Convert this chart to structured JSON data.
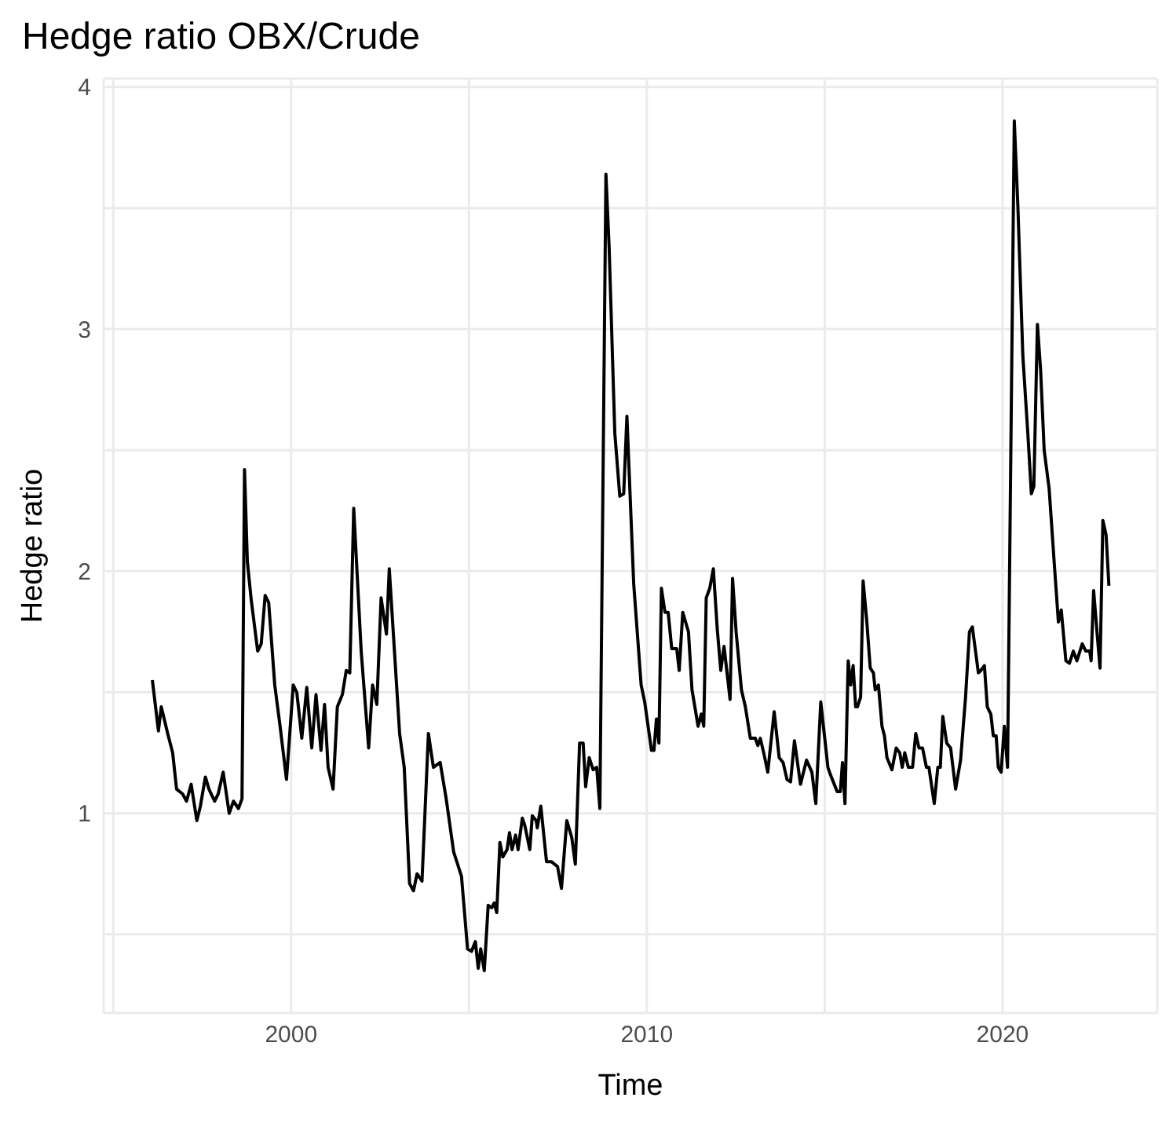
{
  "chart_data": {
    "type": "line",
    "title": "Hedge ratio OBX/Crude",
    "xlabel": "Time",
    "ylabel": "Hedge ratio",
    "xlim": [
      1994.73,
      2024.35
    ],
    "xticks": [
      {
        "value": 1995,
        "label": null
      },
      2000,
      {
        "value": 2005,
        "label": null
      },
      2010,
      {
        "value": 2015,
        "label": null
      },
      2020
    ],
    "ylim": [
      0.175,
      4.035
    ],
    "yticks": [
      {
        "value": 0.5,
        "label": null
      },
      1,
      {
        "value": 1.5,
        "label": null
      },
      2,
      {
        "value": 2.5,
        "label": null
      },
      3,
      {
        "value": 3.5,
        "label": null
      },
      4
    ],
    "grid": true,
    "marker": "none",
    "line_style": "solid",
    "series": [
      {
        "color": "#000000",
        "x": [
          1996.1,
          1996.27,
          1996.35,
          1996.53,
          1996.67,
          1996.78,
          1996.95,
          1997.06,
          1997.19,
          1997.35,
          1997.45,
          1997.59,
          1997.69,
          1997.85,
          1997.95,
          1998.09,
          1998.26,
          1998.38,
          1998.52,
          1998.62,
          1998.69,
          1998.77,
          1998.88,
          1999.06,
          1999.16,
          1999.27,
          1999.37,
          1999.54,
          1999.69,
          1999.87,
          2000.06,
          2000.16,
          2000.3,
          2000.44,
          2000.58,
          2000.7,
          2000.84,
          2000.94,
          2001.04,
          2001.18,
          2001.3,
          2001.44,
          2001.55,
          2001.65,
          2001.76,
          2001.97,
          2002.18,
          2002.29,
          2002.41,
          2002.53,
          2002.68,
          2002.76,
          2003.05,
          2003.18,
          2003.33,
          2003.44,
          2003.54,
          2003.68,
          2003.86,
          2004.0,
          2004.19,
          2004.36,
          2004.57,
          2004.79,
          2004.96,
          2005.07,
          2005.18,
          2005.26,
          2005.33,
          2005.43,
          2005.54,
          2005.64,
          2005.71,
          2005.78,
          2005.87,
          2005.95,
          2006.07,
          2006.14,
          2006.21,
          2006.31,
          2006.38,
          2006.5,
          2006.57,
          2006.71,
          2006.78,
          2006.89,
          2006.92,
          2007.02,
          2007.18,
          2007.32,
          2007.49,
          2007.6,
          2007.75,
          2007.89,
          2007.99,
          2008.11,
          2008.21,
          2008.28,
          2008.38,
          2008.49,
          2008.59,
          2008.68,
          2008.85,
          2008.94,
          2009.1,
          2009.24,
          2009.35,
          2009.44,
          2009.63,
          2009.84,
          2009.94,
          2010.13,
          2010.2,
          2010.27,
          2010.34,
          2010.41,
          2010.51,
          2010.6,
          2010.7,
          2010.84,
          2010.91,
          2011.01,
          2011.17,
          2011.27,
          2011.44,
          2011.53,
          2011.6,
          2011.67,
          2011.77,
          2011.87,
          2011.98,
          2012.08,
          2012.17,
          2012.34,
          2012.41,
          2012.51,
          2012.66,
          2012.77,
          2012.91,
          2013.05,
          2013.12,
          2013.19,
          2013.3,
          2013.4,
          2013.58,
          2013.72,
          2013.83,
          2013.94,
          2014.04,
          2014.15,
          2014.32,
          2014.49,
          2014.64,
          2014.75,
          2014.89,
          2015.09,
          2015.16,
          2015.35,
          2015.44,
          2015.5,
          2015.57,
          2015.66,
          2015.73,
          2015.8,
          2015.87,
          2015.92,
          2016.01,
          2016.08,
          2016.18,
          2016.28,
          2016.37,
          2016.42,
          2016.51,
          2016.61,
          2016.68,
          2016.75,
          2016.89,
          2017.01,
          2017.11,
          2017.18,
          2017.25,
          2017.35,
          2017.47,
          2017.56,
          2017.65,
          2017.75,
          2017.86,
          2017.93,
          2018.08,
          2018.18,
          2018.25,
          2018.32,
          2018.43,
          2018.54,
          2018.68,
          2018.82,
          2018.96,
          2019.07,
          2019.15,
          2019.32,
          2019.39,
          2019.49,
          2019.57,
          2019.67,
          2019.74,
          2019.82,
          2019.88,
          2019.96,
          2020.05,
          2020.14,
          2020.33,
          2020.43,
          2020.57,
          2020.71,
          2020.81,
          2020.88,
          2020.98,
          2021.07,
          2021.17,
          2021.31,
          2021.45,
          2021.57,
          2021.65,
          2021.78,
          2021.88,
          2021.99,
          2022.09,
          2022.24,
          2022.34,
          2022.45,
          2022.49,
          2022.56,
          2022.66,
          2022.74,
          2022.82,
          2022.91,
          2022.99
        ],
        "values": [
          1.55,
          1.34,
          1.44,
          1.33,
          1.25,
          1.1,
          1.08,
          1.05,
          1.12,
          0.97,
          1.03,
          1.15,
          1.1,
          1.05,
          1.08,
          1.17,
          1.0,
          1.05,
          1.02,
          1.06,
          2.42,
          2.04,
          1.88,
          1.67,
          1.7,
          1.9,
          1.87,
          1.53,
          1.36,
          1.14,
          1.53,
          1.5,
          1.31,
          1.52,
          1.27,
          1.49,
          1.26,
          1.45,
          1.19,
          1.1,
          1.44,
          1.49,
          1.59,
          1.58,
          2.26,
          1.67,
          1.27,
          1.53,
          1.45,
          1.89,
          1.74,
          2.01,
          1.33,
          1.19,
          0.71,
          0.68,
          0.75,
          0.72,
          1.33,
          1.19,
          1.21,
          1.06,
          0.84,
          0.74,
          0.44,
          0.43,
          0.47,
          0.36,
          0.44,
          0.35,
          0.62,
          0.61,
          0.63,
          0.59,
          0.88,
          0.82,
          0.85,
          0.92,
          0.85,
          0.91,
          0.85,
          0.98,
          0.95,
          0.85,
          0.99,
          0.97,
          0.94,
          1.03,
          0.8,
          0.8,
          0.78,
          0.69,
          0.97,
          0.9,
          0.79,
          1.29,
          1.29,
          1.11,
          1.23,
          1.18,
          1.19,
          1.02,
          3.64,
          3.34,
          2.57,
          2.31,
          2.32,
          2.64,
          1.95,
          1.53,
          1.46,
          1.26,
          1.26,
          1.39,
          1.29,
          1.93,
          1.83,
          1.83,
          1.68,
          1.68,
          1.59,
          1.83,
          1.75,
          1.51,
          1.36,
          1.41,
          1.36,
          1.89,
          1.93,
          2.01,
          1.76,
          1.59,
          1.69,
          1.47,
          1.97,
          1.75,
          1.51,
          1.44,
          1.31,
          1.31,
          1.28,
          1.31,
          1.24,
          1.17,
          1.42,
          1.23,
          1.21,
          1.14,
          1.13,
          1.3,
          1.12,
          1.22,
          1.17,
          1.04,
          1.46,
          1.19,
          1.16,
          1.09,
          1.09,
          1.21,
          1.04,
          1.63,
          1.53,
          1.61,
          1.44,
          1.44,
          1.48,
          1.96,
          1.8,
          1.6,
          1.58,
          1.51,
          1.53,
          1.36,
          1.32,
          1.23,
          1.18,
          1.27,
          1.25,
          1.19,
          1.25,
          1.19,
          1.19,
          1.33,
          1.27,
          1.27,
          1.19,
          1.19,
          1.04,
          1.19,
          1.19,
          1.4,
          1.29,
          1.27,
          1.1,
          1.22,
          1.48,
          1.75,
          1.77,
          1.58,
          1.59,
          1.61,
          1.44,
          1.41,
          1.32,
          1.32,
          1.19,
          1.17,
          1.36,
          1.19,
          3.86,
          3.51,
          2.89,
          2.57,
          2.32,
          2.35,
          3.02,
          2.83,
          2.5,
          2.34,
          2.04,
          1.79,
          1.84,
          1.63,
          1.62,
          1.67,
          1.63,
          1.7,
          1.67,
          1.67,
          1.63,
          1.92,
          1.74,
          1.6,
          2.21,
          2.15,
          1.94
        ]
      }
    ]
  }
}
